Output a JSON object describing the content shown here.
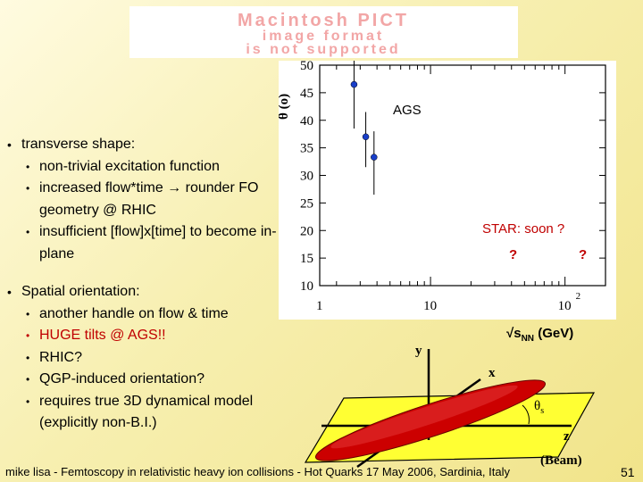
{
  "pict_placeholder": {
    "line1": "Macintosh PICT",
    "line2": "image format",
    "line3": "is not supported"
  },
  "bullets": {
    "transverse": {
      "label": "transverse shape:",
      "items": [
        "non-trivial excitation function",
        "increased flow*time → rounder FO geometry @ RHIC",
        "insufficient [flow]x[time] to become in-plane"
      ]
    },
    "spatial": {
      "label": "Spatial orientation:",
      "items": [
        "another handle on flow & time",
        "HUGE tilts @ AGS!!",
        "RHIC?",
        "QGP-induced orientation?",
        "requires true 3D dynamical model (explicitly non-B.I.)"
      ]
    }
  },
  "chart_data": {
    "type": "scatter",
    "xscale": "log",
    "xlim": [
      1.5,
      200
    ],
    "ylim": [
      10,
      50
    ],
    "yticks": [
      10,
      15,
      20,
      25,
      30,
      35,
      40,
      45,
      50
    ],
    "xtick_labels": [
      "1",
      "10",
      "10"
    ],
    "xtick_superscript": "2",
    "ylabel": "θ (o)",
    "xlabel": "√s",
    "xlabel_sub": "NN",
    "xlabel_unit": " (GeV)",
    "points": [
      {
        "x": 2.7,
        "y": 46.5,
        "yerr_low": 38.5,
        "yerr_high": 51
      },
      {
        "x": 3.3,
        "y": 37,
        "yerr_low": 31.5,
        "yerr_high": 41.5
      },
      {
        "x": 3.8,
        "y": 33.3,
        "yerr_low": 26.5,
        "yerr_high": 38
      }
    ],
    "label_ags": "AGS",
    "label_star": "STAR: soon ?",
    "question_mark": "?",
    "marker_color": "#1a3fc8",
    "annotation_color": "#c00000"
  },
  "diagram": {
    "axis_y": "y",
    "axis_x": "x",
    "axis_z": "z",
    "beam_label": "(Beam)",
    "theta_label": "θ",
    "theta_sub": "s"
  },
  "footer": "mike lisa - Femtoscopy in relativistic heavy ion collisions - Hot Quarks 17 May 2006, Sardinia, Italy",
  "page_number": "51"
}
